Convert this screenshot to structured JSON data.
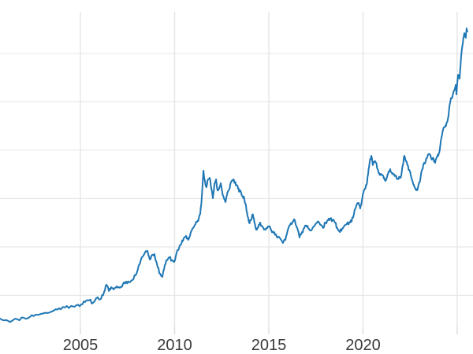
{
  "chart_data": {
    "type": "line",
    "title": "",
    "xlabel": "",
    "ylabel": "",
    "grid": true,
    "legend_position": "none",
    "x_tick_labels": [
      "2005",
      "2010",
      "2015",
      "2020"
    ],
    "x_tick_years": [
      2005,
      2010,
      2015,
      2020
    ],
    "x_gridline_years": [
      2005,
      2010,
      2015,
      2020,
      2025
    ],
    "y_gridline_values": [
      500,
      1000,
      1500,
      2000,
      2500,
      3000
    ],
    "xlim": [
      2000.73,
      2025.84
    ],
    "ylim": [
      178,
      3431
    ],
    "series": [
      {
        "name": "value",
        "color": "#1f77b4",
        "points": [
          [
            2000.73,
            260
          ],
          [
            2001.07,
            244
          ],
          [
            2001.36,
            236
          ],
          [
            2001.65,
            252
          ],
          [
            2001.99,
            268
          ],
          [
            2002.32,
            277
          ],
          [
            2002.62,
            301
          ],
          [
            2002.91,
            309
          ],
          [
            2003.24,
            317
          ],
          [
            2003.58,
            341
          ],
          [
            2003.87,
            366
          ],
          [
            2004.16,
            374
          ],
          [
            2004.5,
            390
          ],
          [
            2004.79,
            398
          ],
          [
            2005.04,
            406
          ],
          [
            2005.25,
            431
          ],
          [
            2005.46,
            447
          ],
          [
            2005.67,
            423
          ],
          [
            2005.92,
            480
          ],
          [
            2006.09,
            463
          ],
          [
            2006.26,
            537
          ],
          [
            2006.38,
            610
          ],
          [
            2006.51,
            545
          ],
          [
            2006.63,
            585
          ],
          [
            2006.76,
            561
          ],
          [
            2006.92,
            593
          ],
          [
            2007.09,
            577
          ],
          [
            2007.26,
            618
          ],
          [
            2007.43,
            642
          ],
          [
            2007.59,
            634
          ],
          [
            2007.76,
            658
          ],
          [
            2007.93,
            707
          ],
          [
            2008.1,
            813
          ],
          [
            2008.26,
            894
          ],
          [
            2008.43,
            943
          ],
          [
            2008.56,
            959
          ],
          [
            2008.68,
            870
          ],
          [
            2008.81,
            919
          ],
          [
            2008.93,
            927
          ],
          [
            2009.1,
            789
          ],
          [
            2009.23,
            724
          ],
          [
            2009.35,
            691
          ],
          [
            2009.48,
            813
          ],
          [
            2009.6,
            862
          ],
          [
            2009.73,
            894
          ],
          [
            2009.85,
            862
          ],
          [
            2009.98,
            846
          ],
          [
            2010.1,
            935
          ],
          [
            2010.23,
            984
          ],
          [
            2010.36,
            1033
          ],
          [
            2010.48,
            1089
          ],
          [
            2010.61,
            1114
          ],
          [
            2010.73,
            1073
          ],
          [
            2010.86,
            1154
          ],
          [
            2010.98,
            1195
          ],
          [
            2011.11,
            1236
          ],
          [
            2011.19,
            1260
          ],
          [
            2011.28,
            1293
          ],
          [
            2011.36,
            1341
          ],
          [
            2011.44,
            1504
          ],
          [
            2011.53,
            1789
          ],
          [
            2011.61,
            1683
          ],
          [
            2011.69,
            1618
          ],
          [
            2011.78,
            1699
          ],
          [
            2011.86,
            1715
          ],
          [
            2011.95,
            1602
          ],
          [
            2012.03,
            1504
          ],
          [
            2012.11,
            1642
          ],
          [
            2012.2,
            1699
          ],
          [
            2012.28,
            1585
          ],
          [
            2012.36,
            1602
          ],
          [
            2012.45,
            1659
          ],
          [
            2012.53,
            1561
          ],
          [
            2012.62,
            1504
          ],
          [
            2012.7,
            1463
          ],
          [
            2012.78,
            1537
          ],
          [
            2012.87,
            1585
          ],
          [
            2012.95,
            1642
          ],
          [
            2013.03,
            1683
          ],
          [
            2013.12,
            1699
          ],
          [
            2013.2,
            1667
          ],
          [
            2013.28,
            1642
          ],
          [
            2013.37,
            1602
          ],
          [
            2013.45,
            1577
          ],
          [
            2013.54,
            1553
          ],
          [
            2013.62,
            1520
          ],
          [
            2013.7,
            1496
          ],
          [
            2013.79,
            1423
          ],
          [
            2013.87,
            1317
          ],
          [
            2013.95,
            1252
          ],
          [
            2014.04,
            1276
          ],
          [
            2014.12,
            1333
          ],
          [
            2014.21,
            1293
          ],
          [
            2014.29,
            1211
          ],
          [
            2014.37,
            1179
          ],
          [
            2014.46,
            1228
          ],
          [
            2014.54,
            1252
          ],
          [
            2014.62,
            1219
          ],
          [
            2014.75,
            1179
          ],
          [
            2014.87,
            1195
          ],
          [
            2015.0,
            1211
          ],
          [
            2015.13,
            1171
          ],
          [
            2015.25,
            1146
          ],
          [
            2015.38,
            1130
          ],
          [
            2015.5,
            1106
          ],
          [
            2015.63,
            1081
          ],
          [
            2015.75,
            1041
          ],
          [
            2015.88,
            1073
          ],
          [
            2016.0,
            1171
          ],
          [
            2016.13,
            1228
          ],
          [
            2016.26,
            1260
          ],
          [
            2016.38,
            1276
          ],
          [
            2016.51,
            1195
          ],
          [
            2016.63,
            1098
          ],
          [
            2016.76,
            1154
          ],
          [
            2016.88,
            1195
          ],
          [
            2017.01,
            1211
          ],
          [
            2017.13,
            1187
          ],
          [
            2017.26,
            1171
          ],
          [
            2017.38,
            1211
          ],
          [
            2017.51,
            1244
          ],
          [
            2017.64,
            1260
          ],
          [
            2017.76,
            1228
          ],
          [
            2017.89,
            1195
          ],
          [
            2018.01,
            1252
          ],
          [
            2018.14,
            1276
          ],
          [
            2018.26,
            1293
          ],
          [
            2018.39,
            1276
          ],
          [
            2018.51,
            1252
          ],
          [
            2018.64,
            1195
          ],
          [
            2018.77,
            1154
          ],
          [
            2018.89,
            1187
          ],
          [
            2019.02,
            1219
          ],
          [
            2019.14,
            1236
          ],
          [
            2019.27,
            1252
          ],
          [
            2019.39,
            1260
          ],
          [
            2019.52,
            1341
          ],
          [
            2019.64,
            1423
          ],
          [
            2019.77,
            1455
          ],
          [
            2019.85,
            1398
          ],
          [
            2019.94,
            1480
          ],
          [
            2020.02,
            1561
          ],
          [
            2020.1,
            1602
          ],
          [
            2020.19,
            1642
          ],
          [
            2020.27,
            1748
          ],
          [
            2020.36,
            1886
          ],
          [
            2020.44,
            1943
          ],
          [
            2020.52,
            1846
          ],
          [
            2020.61,
            1886
          ],
          [
            2020.69,
            1870
          ],
          [
            2020.77,
            1805
          ],
          [
            2020.86,
            1764
          ],
          [
            2020.94,
            1756
          ],
          [
            2021.02,
            1740
          ],
          [
            2021.11,
            1707
          ],
          [
            2021.19,
            1683
          ],
          [
            2021.28,
            1724
          ],
          [
            2021.36,
            1781
          ],
          [
            2021.44,
            1805
          ],
          [
            2021.53,
            1764
          ],
          [
            2021.61,
            1748
          ],
          [
            2021.69,
            1732
          ],
          [
            2021.78,
            1715
          ],
          [
            2021.86,
            1707
          ],
          [
            2021.95,
            1724
          ],
          [
            2022.03,
            1740
          ],
          [
            2022.11,
            1846
          ],
          [
            2022.2,
            1943
          ],
          [
            2022.28,
            1886
          ],
          [
            2022.36,
            1846
          ],
          [
            2022.45,
            1797
          ],
          [
            2022.53,
            1748
          ],
          [
            2022.62,
            1683
          ],
          [
            2022.7,
            1642
          ],
          [
            2022.78,
            1602
          ],
          [
            2022.87,
            1585
          ],
          [
            2022.95,
            1642
          ],
          [
            2023.03,
            1683
          ],
          [
            2023.12,
            1789
          ],
          [
            2023.2,
            1846
          ],
          [
            2023.33,
            1886
          ],
          [
            2023.41,
            1927
          ],
          [
            2023.54,
            1959
          ],
          [
            2023.66,
            1902
          ],
          [
            2023.75,
            1911
          ],
          [
            2023.83,
            1870
          ],
          [
            2023.91,
            1927
          ],
          [
            2024.0,
            1943
          ],
          [
            2024.08,
            2008
          ],
          [
            2024.16,
            2130
          ],
          [
            2024.25,
            2211
          ],
          [
            2024.33,
            2236
          ],
          [
            2024.41,
            2252
          ],
          [
            2024.5,
            2317
          ],
          [
            2024.59,
            2455
          ],
          [
            2024.67,
            2537
          ],
          [
            2024.75,
            2561
          ],
          [
            2024.84,
            2618
          ],
          [
            2024.92,
            2675
          ],
          [
            2024.96,
            2577
          ],
          [
            2025.05,
            2780
          ],
          [
            2025.13,
            2740
          ],
          [
            2025.21,
            2967
          ],
          [
            2025.3,
            3106
          ],
          [
            2025.38,
            3211
          ],
          [
            2025.46,
            3163
          ],
          [
            2025.5,
            3260
          ],
          [
            2025.54,
            3228
          ]
        ]
      }
    ],
    "noise": {
      "seed": 11,
      "subdivisions": 3,
      "amplitude": 18
    }
  },
  "style": {
    "line_color": "#1f77b4",
    "grid_color": "#e5e5e5",
    "tick_color": "#dcdcdc",
    "tick_label_color": "#3a3a3a",
    "background": "#ffffff"
  }
}
